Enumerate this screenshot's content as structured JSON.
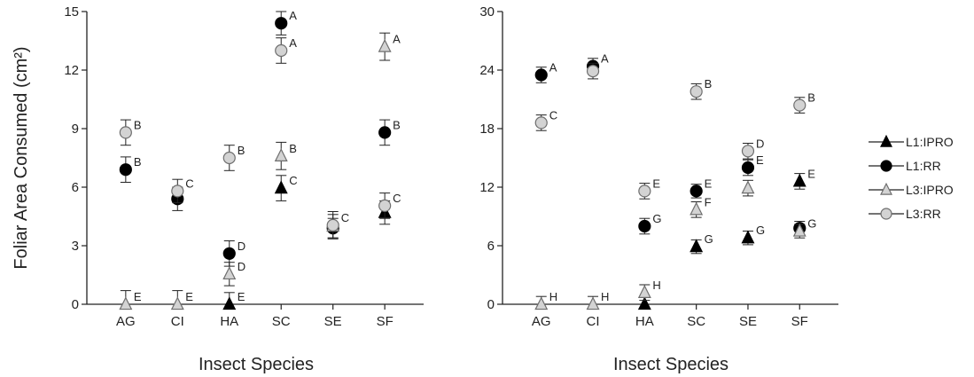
{
  "colors": {
    "L1:IPRO": {
      "fill": "#000000",
      "stroke": "#000000"
    },
    "L1:RR": {
      "fill": "#000000",
      "stroke": "#000000"
    },
    "L3:IPRO": {
      "fill": "#d3d3d3",
      "stroke": "#6e6e6e"
    },
    "L3:RR": {
      "fill": "#d3d3d3",
      "stroke": "#6e6e6e"
    }
  },
  "legend": {
    "entries": [
      {
        "label": "L1:IPRO",
        "marker": "triangle"
      },
      {
        "label": "L1:RR",
        "marker": "circle"
      },
      {
        "label": "L3:IPRO",
        "marker": "triangle"
      },
      {
        "label": "L3:RR",
        "marker": "circle"
      }
    ]
  },
  "chart_data": [
    {
      "type": "scatter",
      "ylabel": "Foliar Area Consumed (cm²)",
      "xlabel": "Insect Species",
      "categories": [
        "AG",
        "CI",
        "HA",
        "SC",
        "SE",
        "SF"
      ],
      "ylim": [
        0,
        15
      ],
      "yticks": [
        0,
        3,
        6,
        9,
        12,
        15
      ],
      "series": [
        {
          "name": "L1:IPRO",
          "marker": "triangle",
          "values": [
            null,
            null,
            0.0,
            5.95,
            null,
            4.7
          ],
          "errors": [
            null,
            null,
            0.6,
            0.65,
            null,
            0.6
          ],
          "letters": [
            null,
            null,
            "E",
            "C",
            null,
            null
          ]
        },
        {
          "name": "L1:RR",
          "marker": "circle",
          "values": [
            6.9,
            5.4,
            2.6,
            14.4,
            3.9,
            8.8
          ],
          "errors": [
            0.65,
            0.6,
            0.65,
            0.6,
            0.5,
            0.65
          ],
          "letters": [
            "B",
            null,
            "D",
            "A",
            null,
            "B"
          ]
        },
        {
          "name": "L3:IPRO",
          "marker": "triangle",
          "values": [
            0.0,
            0.0,
            1.55,
            7.6,
            4.0,
            13.2
          ],
          "errors": [
            0.7,
            0.7,
            0.6,
            0.7,
            0.6,
            0.7
          ],
          "letters": [
            "E",
            "E",
            "D",
            "B",
            null,
            "A"
          ]
        },
        {
          "name": "L3:RR",
          "marker": "circle",
          "values": [
            8.8,
            5.8,
            7.5,
            13.0,
            4.05,
            5.05
          ],
          "errors": [
            0.65,
            0.6,
            0.65,
            0.65,
            0.7,
            0.65
          ],
          "letters": [
            "B",
            "C",
            "B",
            "A",
            "C",
            "C"
          ]
        }
      ]
    },
    {
      "type": "scatter",
      "ylabel": "",
      "xlabel": "Insect Species",
      "categories": [
        "AG",
        "CI",
        "HA",
        "SC",
        "SE",
        "SF"
      ],
      "ylim": [
        0,
        30
      ],
      "yticks": [
        0,
        6,
        12,
        18,
        24,
        30
      ],
      "series": [
        {
          "name": "L1:IPRO",
          "marker": "triangle",
          "values": [
            null,
            null,
            0.0,
            5.9,
            6.8,
            12.6
          ],
          "errors": [
            null,
            null,
            0.7,
            0.7,
            0.7,
            0.8
          ],
          "letters": [
            null,
            null,
            null,
            "G",
            "G",
            "E"
          ]
        },
        {
          "name": "L1:RR",
          "marker": "circle",
          "values": [
            23.5,
            24.4,
            8.0,
            11.6,
            14.0,
            7.8
          ],
          "errors": [
            0.8,
            0.8,
            0.8,
            0.7,
            0.8,
            0.7
          ],
          "letters": [
            "A",
            "A",
            "G",
            "E",
            "E",
            null
          ]
        },
        {
          "name": "L3:IPRO",
          "marker": "triangle",
          "values": [
            0.0,
            0.0,
            1.2,
            9.7,
            11.9,
            7.5
          ],
          "errors": [
            0.8,
            0.8,
            0.8,
            0.8,
            0.8,
            0.7
          ],
          "letters": [
            "H",
            "H",
            "H",
            "F",
            null,
            "G"
          ]
        },
        {
          "name": "L3:RR",
          "marker": "circle",
          "values": [
            18.6,
            23.9,
            11.6,
            21.8,
            15.7,
            20.4
          ],
          "errors": [
            0.8,
            0.8,
            0.8,
            0.8,
            0.8,
            0.8
          ],
          "letters": [
            "C",
            null,
            "E",
            "B",
            "D",
            "B"
          ]
        }
      ]
    }
  ]
}
